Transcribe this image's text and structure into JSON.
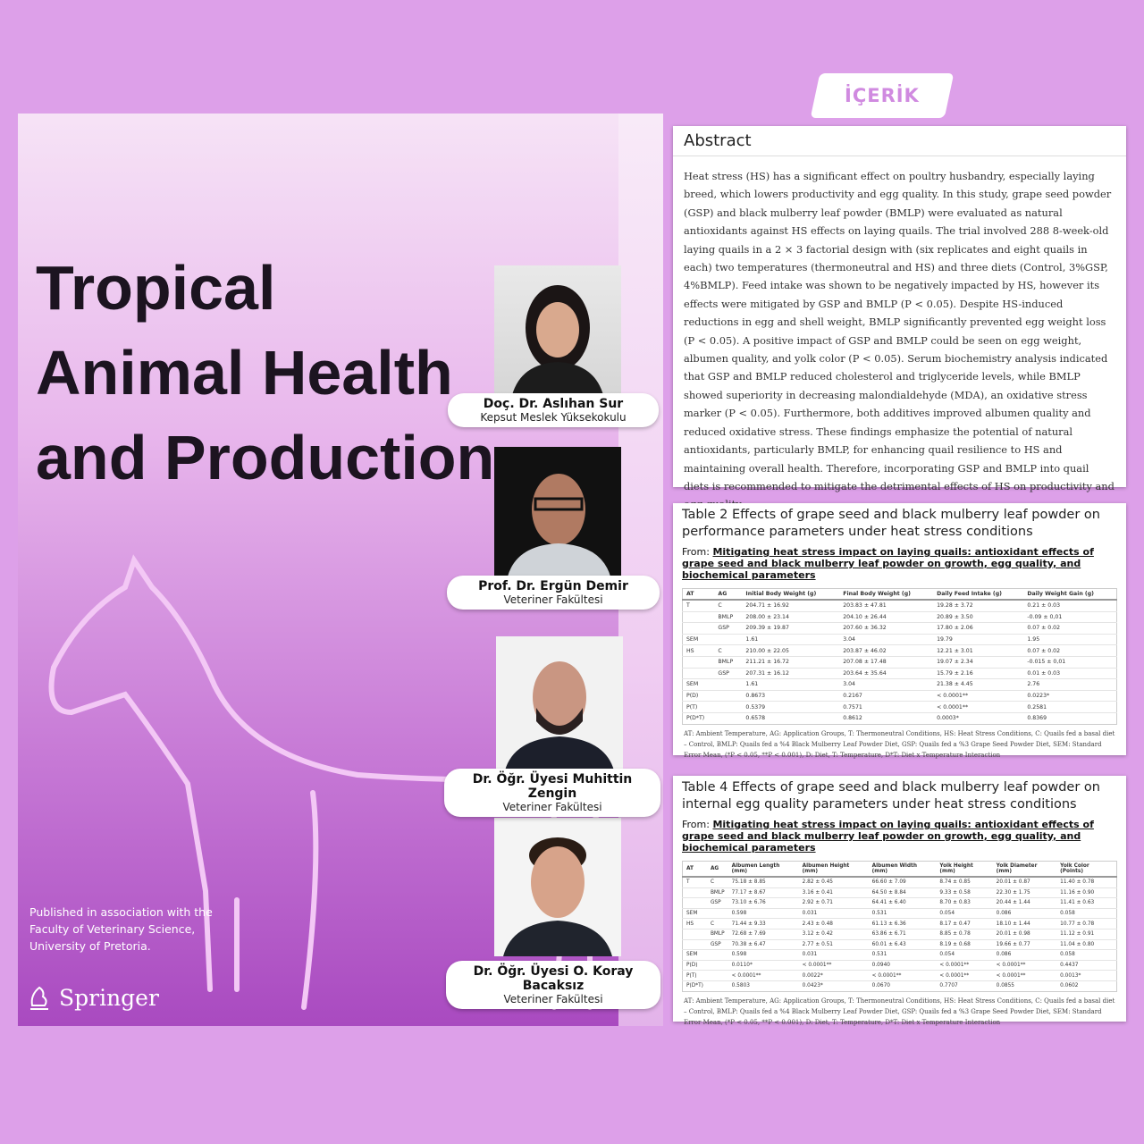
{
  "tag": "İÇERİK",
  "cover": {
    "title_lines": [
      "Tropical",
      "Animal Health",
      "and Production"
    ],
    "assoc_lines": [
      "Published in association with the",
      "Faculty of Veterinary Science,",
      "University of Pretoria."
    ],
    "publisher": "Springer"
  },
  "authors": [
    {
      "name": "Doç. Dr. Aslıhan Sur",
      "affiliation": "Kepsut Meslek Yüksekokulu"
    },
    {
      "name": "Prof. Dr. Ergün Demir",
      "affiliation": "Veteriner Fakültesi"
    },
    {
      "name": "Dr. Öğr. Üyesi Muhittin Zengin",
      "affiliation": "Veteriner Fakültesi"
    },
    {
      "name": "Dr. Öğr. Üyesi O. Koray Bacaksız",
      "affiliation": "Veteriner Fakültesi"
    }
  ],
  "abstract": {
    "heading": "Abstract",
    "text": "Heat stress (HS) has a significant effect on poultry husbandry, especially laying breed, which lowers productivity and egg quality. In this study, grape seed powder (GSP) and black mulberry leaf powder (BMLP) were evaluated as natural antioxidants against HS effects on laying quails. The trial involved 288 8-week-old laying quails in a 2 × 3 factorial design with (six replicates and eight quails in each) two temperatures (thermoneutral and HS) and three diets (Control, 3%GSP, 4%BMLP). Feed intake was shown to be negatively impacted by HS, however its effects were mitigated by GSP and BMLP (P < 0.05). Despite HS-induced reductions in egg and shell weight, BMLP significantly prevented egg weight loss (P < 0.05). A positive impact of GSP and BMLP could be seen on egg weight, albumen quality, and yolk color (P < 0.05). Serum biochemistry analysis indicated that GSP and BMLP reduced cholesterol and triglyceride levels, while BMLP showed superiority in decreasing malondialdehyde (MDA), an oxidative stress marker (P < 0.05). Furthermore, both additives improved albumen quality and reduced oxidative stress. These findings emphasize the potential of natural antioxidants, particularly BMLP, for enhancing quail resilience to HS and maintaining overall health. Therefore, incorporating GSP and BMLP into quail diets is recommended to mitigate the detrimental effects of HS on productivity and egg quality."
  },
  "tables": [
    {
      "title": "Table 2 Effects of grape seed and black mulberry leaf powder on performance parameters under heat stress conditions",
      "from_label": "From:",
      "from_link": "Mitigating heat stress impact on laying quails: antioxidant effects of grape seed and black mulberry leaf powder on growth, egg quality, and biochemical parameters",
      "headers": [
        "AT",
        "AG",
        "Initial Body Weight (g)",
        "Final Body Weight (g)",
        "Daily Feed Intake (g)",
        "Daily Weight Gain (g)"
      ],
      "rows": [
        [
          "T",
          "C",
          "204.71 ± 16.92",
          "203.83 ± 47.81",
          "19.28 ± 3.72",
          "0.21 ± 0.03"
        ],
        [
          "",
          "BMLP",
          "208.00 ± 23.14",
          "204.10 ± 26.44",
          "20.89 ± 3.50",
          "-0.09 ± 0,01"
        ],
        [
          "",
          "GSP",
          "209.39 ± 19.87",
          "207.60 ± 36.32",
          "17.80 ± 2.06",
          "0.07 ± 0.02"
        ],
        [
          "SEM",
          "",
          "1.61",
          "3.04",
          "19.79",
          "1.95"
        ],
        [
          "HS",
          "C",
          "210.00 ± 22.05",
          "203.87 ± 46.02",
          "12.21 ± 3.01",
          "0.07 ± 0.02"
        ],
        [
          "",
          "BMLP",
          "211.21 ± 16.72",
          "207.08 ± 17.48",
          "19.07 ± 2.34",
          "-0.015 ± 0,01"
        ],
        [
          "",
          "GSP",
          "207.31 ± 16.12",
          "203.64 ± 35.64",
          "15.79 ± 2.16",
          "0.01 ± 0.03"
        ],
        [
          "SEM",
          "",
          "1.61",
          "3.04",
          "21.38 ± 4.45",
          "2.76"
        ],
        [
          "P(D)",
          "",
          "0.8673",
          "0.2167",
          "< 0.0001**",
          "0.0223*"
        ],
        [
          "P(T)",
          "",
          "0.5379",
          "0.7571",
          "< 0.0001**",
          "0.2581"
        ],
        [
          "P(D*T)",
          "",
          "0.6578",
          "0.8612",
          "0.0003*",
          "0.8369"
        ]
      ],
      "note": "AT: Ambient Temperature, AG: Application Groups, T: Thermoneutral Conditions, HS: Heat Stress Conditions, C: Quails fed a basal diet – Control, BMLP: Quails fed a %4 Black Mulberry Leaf Powder Diet, GSP: Quails fed a %3 Grape Seed Powder Diet, SEM: Standard Error Mean, (*P < 0.05, **P < 0.001), D: Diet, T: Temperature, D*T: Diet x Temperature Interaction"
    },
    {
      "title": "Table 4 Effects of grape seed and black mulberry leaf powder on internal egg quality parameters under heat stress conditions",
      "from_label": "From:",
      "from_link": "Mitigating heat stress impact on laying quails: antioxidant effects of grape seed and black mulberry leaf powder on growth, egg quality, and biochemical parameters",
      "headers": [
        "AT",
        "AG",
        "Albumen Length (mm)",
        "Albumen Height (mm)",
        "Albumen Width (mm)",
        "Yolk Height (mm)",
        "Yolk Diameter (mm)",
        "Yolk Color (Points)"
      ],
      "rows": [
        [
          "T",
          "C",
          "75.18 ± 8.85",
          "2.82 ± 0.45",
          "66.60 ± 7.09",
          "8.74 ± 0.85",
          "20.01 ± 0.87",
          "11.40 ± 0.78"
        ],
        [
          "",
          "BMLP",
          "77.17 ± 8.67",
          "3.16 ± 0.41",
          "64.50 ± 8.84",
          "9.33 ± 0.58",
          "22.30 ± 1.75",
          "11.16 ± 0.90"
        ],
        [
          "",
          "GSP",
          "73.10 ± 6.76",
          "2.92 ± 0.71",
          "64.41 ± 6.40",
          "8.70 ± 0.83",
          "20.44 ± 1.44",
          "11.41 ± 0.63"
        ],
        [
          "SEM",
          "",
          "0.598",
          "0.031",
          "0.531",
          "0.054",
          "0.086",
          "0.058"
        ],
        [
          "HS",
          "C",
          "71.44 ± 9.33",
          "2.43 ± 0.48",
          "61.13 ± 6.36",
          "8.17 ± 0.47",
          "18.10 ± 1.44",
          "10.77 ± 0.78"
        ],
        [
          "",
          "BMLP",
          "72.68 ± 7.69",
          "3.12 ± 0.42",
          "63.86 ± 6.71",
          "8.85 ± 0.78",
          "20.01 ± 0.98",
          "11.12 ± 0.91"
        ],
        [
          "",
          "GSP",
          "70.38 ± 6.47",
          "2.77 ± 0.51",
          "60.01 ± 6.43",
          "8.19 ± 0.68",
          "19.66 ± 0.77",
          "11.04 ± 0.80"
        ],
        [
          "SEM",
          "",
          "0.598",
          "0.031",
          "0.531",
          "0.054",
          "0.086",
          "0.058"
        ],
        [
          "P(D)",
          "",
          "0.0110*",
          "< 0.0001**",
          "0.0940",
          "< 0.0001**",
          "< 0.0001**",
          "0.4437"
        ],
        [
          "P(T)",
          "",
          "< 0.0001**",
          "0.0022*",
          "< 0.0001**",
          "< 0.0001**",
          "< 0.0001**",
          "0.0013*"
        ],
        [
          "P(D*T)",
          "",
          "0.5803",
          "0.0423*",
          "0.0670",
          "0.7707",
          "0.0855",
          "0.0602"
        ]
      ],
      "note": "AT: Ambient Temperature, AG: Application Groups, T: Thermoneutral Conditions, HS: Heat Stress Conditions, C: Quails fed a basal diet – Control, BMLP: Quails fed a %4 Black Mulberry Leaf Powder Diet, GSP: Quails fed a %3 Grape Seed Powder Diet, SEM: Standard Error Mean, (*P < 0.05, **P < 0.001), D: Diet, T: Temperature, D*T: Diet x Temperature Interaction"
    }
  ]
}
